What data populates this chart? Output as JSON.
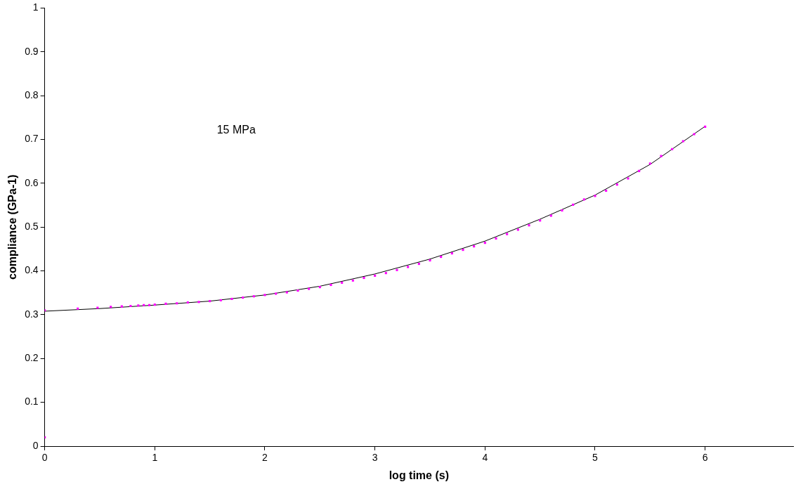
{
  "chart_data": {
    "type": "scatter",
    "xlabel": "log time (s)",
    "ylabel": "compliance (GPa-1)",
    "annotations": [
      "15 MPa"
    ],
    "xlim": [
      0,
      6.8
    ],
    "xticks": [
      0,
      1,
      2,
      3,
      4,
      5,
      6
    ],
    "ylim": [
      0,
      1
    ],
    "yticks": [
      0,
      0.1,
      0.2,
      0.3,
      0.4,
      0.5,
      0.6,
      0.7,
      0.8,
      0.9,
      1
    ],
    "grid": false,
    "legend": false,
    "series": [
      {
        "type": "scatter",
        "color": "#ff00ff",
        "marker": "square",
        "x": [
          0,
          0,
          0.3,
          0.48,
          0.6,
          0.7,
          0.78,
          0.85,
          0.9,
          0.95,
          1.0,
          1.1,
          1.2,
          1.3,
          1.4,
          1.5,
          1.6,
          1.7,
          1.8,
          1.9,
          2.0,
          2.1,
          2.2,
          2.3,
          2.4,
          2.5,
          2.6,
          2.7,
          2.8,
          2.9,
          3.0,
          3.1,
          3.2,
          3.3,
          3.4,
          3.5,
          3.6,
          3.7,
          3.8,
          3.9,
          4.0,
          4.1,
          4.2,
          4.3,
          4.4,
          4.5,
          4.6,
          4.7,
          4.8,
          4.9,
          5.0,
          5.1,
          5.2,
          5.3,
          5.4,
          5.5,
          5.6,
          5.7,
          5.8,
          5.9,
          6.0
        ],
        "values": [
          0.02,
          0.31,
          0.314,
          0.316,
          0.318,
          0.319,
          0.32,
          0.321,
          0.322,
          0.322,
          0.323,
          0.325,
          0.326,
          0.328,
          0.329,
          0.331,
          0.333,
          0.336,
          0.339,
          0.342,
          0.345,
          0.348,
          0.351,
          0.355,
          0.359,
          0.363,
          0.368,
          0.373,
          0.378,
          0.384,
          0.389,
          0.395,
          0.402,
          0.409,
          0.416,
          0.424,
          0.432,
          0.44,
          0.448,
          0.456,
          0.464,
          0.474,
          0.484,
          0.494,
          0.504,
          0.515,
          0.526,
          0.538,
          0.551,
          0.563,
          0.571,
          0.583,
          0.597,
          0.611,
          0.628,
          0.645,
          0.662,
          0.678,
          0.696,
          0.712,
          0.729
        ]
      },
      {
        "type": "line",
        "color": "#000000",
        "marker": "none",
        "line_style": "solid",
        "x": [
          0,
          0.5,
          1,
          1.5,
          2,
          2.5,
          3,
          3.5,
          4,
          4.5,
          5,
          5.5,
          6
        ],
        "values": [
          0.308,
          0.314,
          0.322,
          0.331,
          0.345,
          0.365,
          0.393,
          0.427,
          0.468,
          0.518,
          0.573,
          0.643,
          0.73
        ]
      }
    ]
  }
}
